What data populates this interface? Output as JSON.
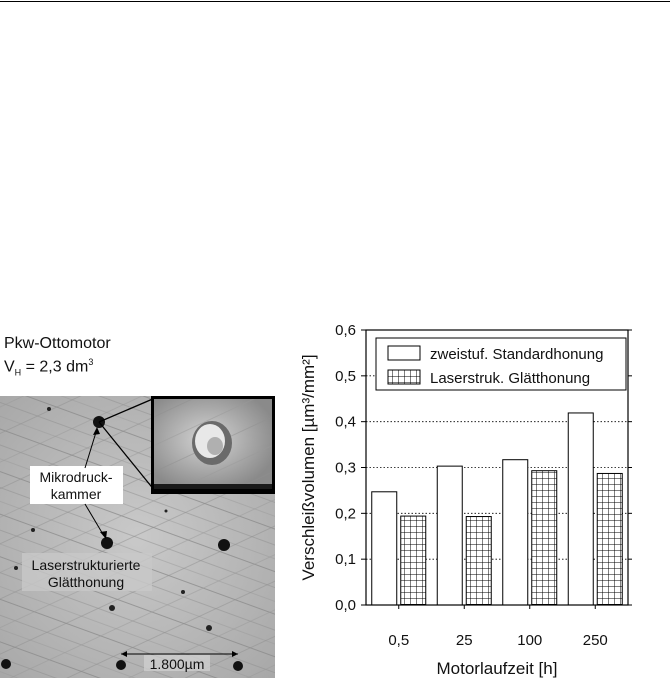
{
  "figure_left": {
    "title_line1": "Pkw-Ottomotor",
    "title_line2_prefix": "V",
    "title_line2_sub": "H",
    "title_line2_value": " = 2,3 dm",
    "title_line2_sup": "3",
    "callout_micro": [
      "Mikrodruck-",
      "kammer"
    ],
    "callout_laser": [
      "Laserstrukturierte",
      "Glätthonung"
    ],
    "scale_bar": "1.800µm"
  },
  "chart_data": {
    "type": "bar",
    "categories": [
      "0,5",
      "25",
      "100",
      "250"
    ],
    "series": [
      {
        "name": "zweistuf. Standardhonung",
        "values": [
          0.247,
          0.303,
          0.317,
          0.419
        ],
        "fill": "#ffffff",
        "pattern": "none"
      },
      {
        "name": "Laserstruk. Glätthonung",
        "values": [
          0.194,
          0.193,
          0.293,
          0.287
        ],
        "fill": "#ffffff",
        "pattern": "grid"
      }
    ],
    "xlabel": "Motorlaufzeit [h]",
    "ylabel": "Verschleißvolumen [µm³/mm²]",
    "ylim": [
      0,
      0.6
    ],
    "yticks": [
      "0,0",
      "0,1",
      "0,2",
      "0,3",
      "0,4",
      "0,5",
      "0,6"
    ],
    "ytick_values": [
      0,
      0.1,
      0.2,
      0.3,
      0.4,
      0.5,
      0.6
    ],
    "grid": "horizontal-dotted",
    "legend_position": "top-left"
  }
}
